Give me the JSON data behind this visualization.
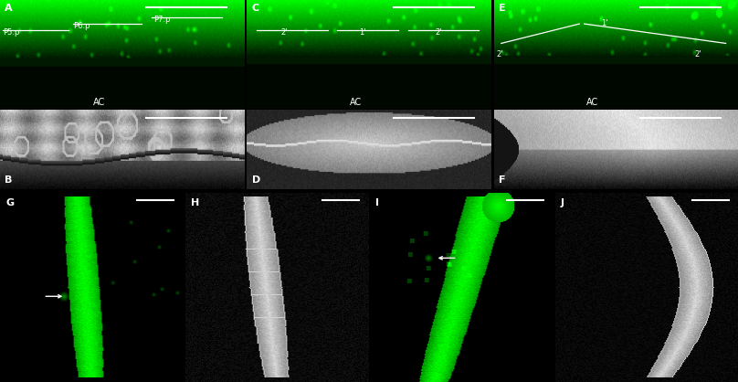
{
  "panels": [
    "A",
    "B",
    "C",
    "D",
    "E",
    "F",
    "G",
    "H",
    "I",
    "J"
  ],
  "bg_black": "#000000",
  "white": "#ffffff",
  "label_fontsize": 8,
  "ac_fontsize": 7,
  "cell_label_fontsize": 6
}
